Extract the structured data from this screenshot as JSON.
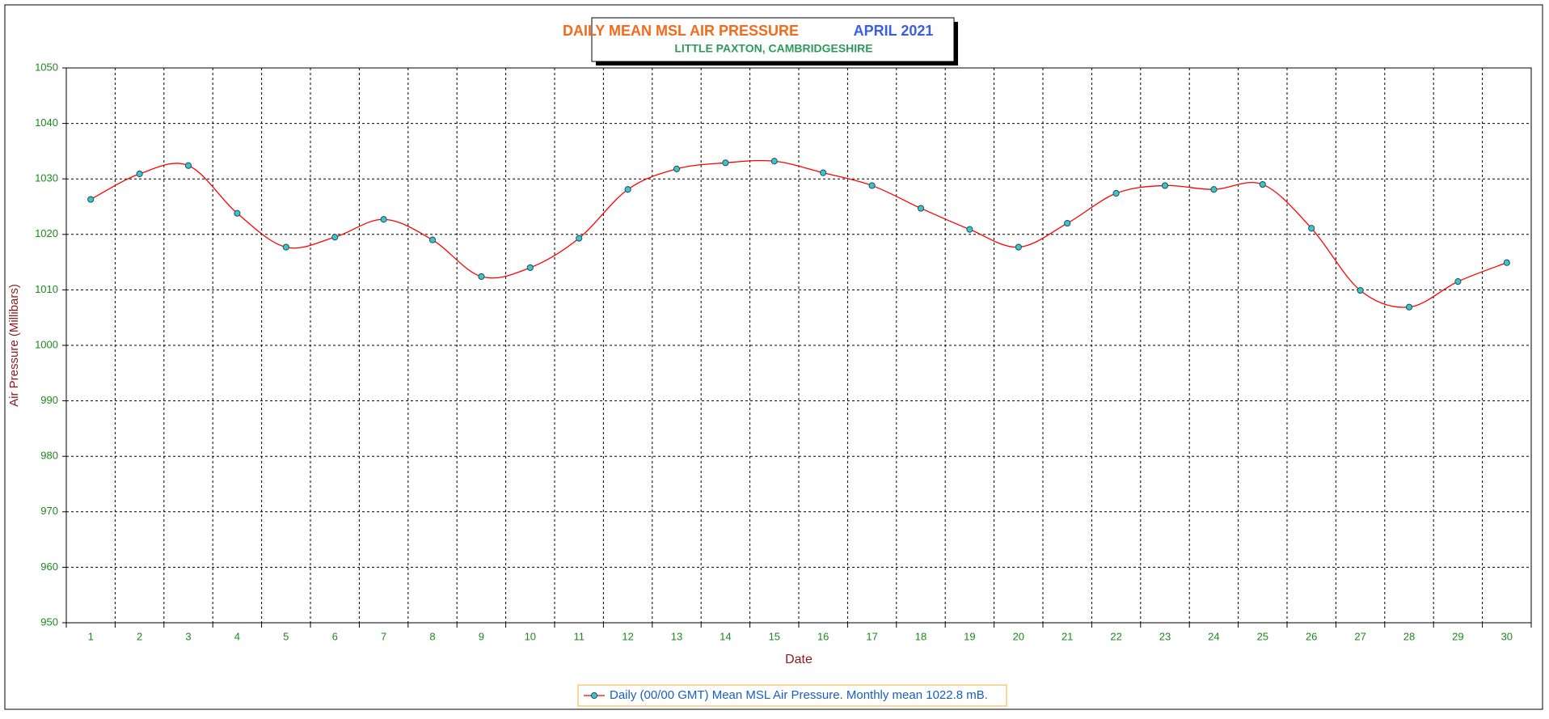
{
  "chart_data": {
    "type": "line",
    "title": "DAILY MEAN MSL AIR PRESSURE",
    "title_period": "APRIL 2021",
    "subtitle": "LITTLE PAXTON, CAMBRIDGESHIRE",
    "x_label": "Date",
    "y_label": "Air Pressure (Millibars)",
    "categories": [
      "1",
      "2",
      "3",
      "4",
      "5",
      "6",
      "7",
      "8",
      "9",
      "10",
      "11",
      "12",
      "13",
      "14",
      "15",
      "16",
      "17",
      "18",
      "19",
      "20",
      "21",
      "22",
      "23",
      "24",
      "25",
      "26",
      "27",
      "28",
      "29",
      "30"
    ],
    "series": [
      {
        "name": "Daily (00/00 GMT) Mean MSL Air Pressure. Monthly mean 1022.8 mB.",
        "color": "#ff0000",
        "marker_color": "#3cc4c8",
        "values": [
          1026.3,
          1030.9,
          1032.4,
          1023.8,
          1017.7,
          1019.5,
          1022.7,
          1019.0,
          1012.4,
          1014.0,
          1019.3,
          1028.1,
          1031.8,
          1032.9,
          1033.2,
          1031.1,
          1028.8,
          1024.7,
          1020.9,
          1017.7,
          1022.0,
          1027.4,
          1028.8,
          1028.1,
          1029.0,
          1021.1,
          1009.9,
          1006.9,
          1011.5,
          1014.9
        ]
      }
    ],
    "ylim": [
      950,
      1050
    ],
    "yticks": [
      950,
      960,
      970,
      980,
      990,
      1000,
      1010,
      1020,
      1030,
      1040,
      1050
    ],
    "grid": true
  }
}
